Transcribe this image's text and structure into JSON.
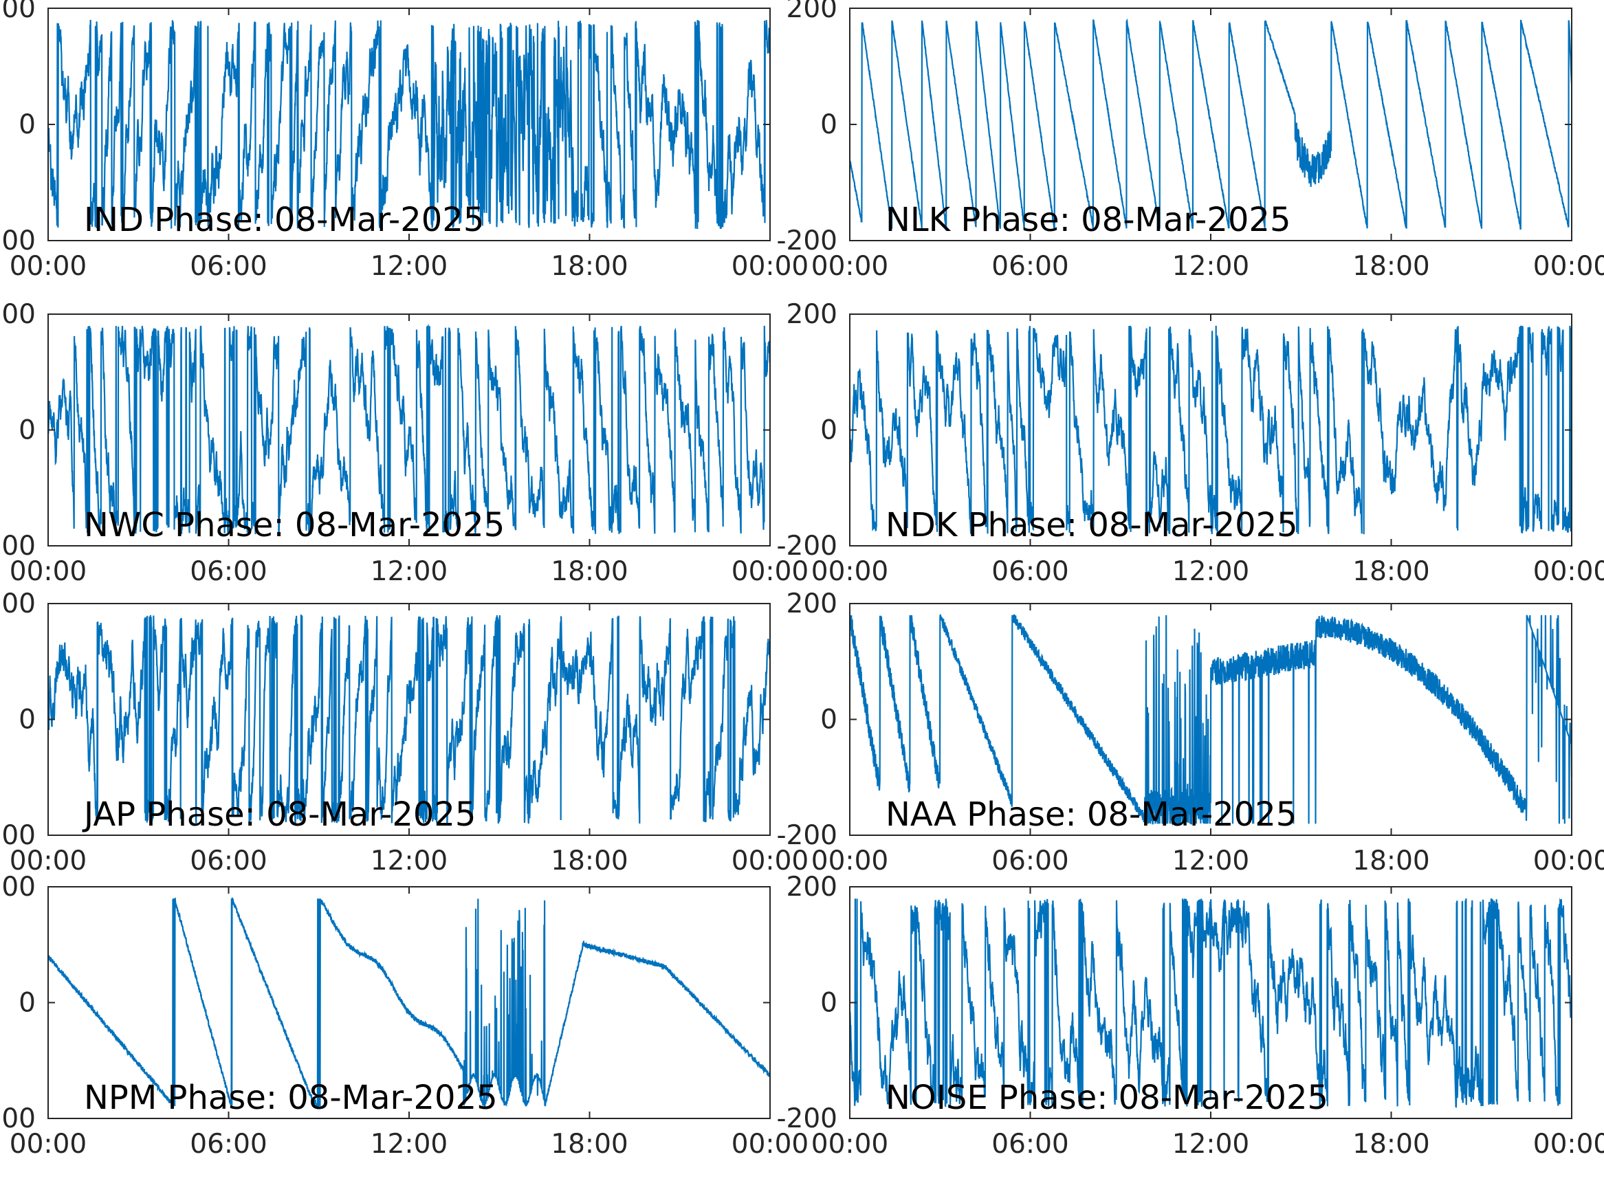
{
  "chart_data": {
    "type": "line",
    "line_color": "#0072BD",
    "axis_color": "#262626",
    "x_tick_labels": [
      "00:00",
      "06:00",
      "12:00",
      "18:00",
      "00:00"
    ],
    "x_range_hours": [
      0,
      24
    ],
    "ylim": [
      -200,
      200
    ],
    "y_tick_labels": [
      "-200",
      "0",
      "200"
    ],
    "grid": false,
    "panels": [
      {
        "label": "IND Phase: 08-Mar-2025",
        "pattern": "dense noisy phase wrapping, densest between 13:00 and 17:00"
      },
      {
        "label": "NLK Phase: 08-Mar-2025",
        "pattern": "regular sawtooth descending ramps, disturbance near 15:00"
      },
      {
        "label": "NWC Phase: 08-Mar-2025",
        "pattern": "dense noisy phase wrapping"
      },
      {
        "label": "NDK Phase: 08-Mar-2025",
        "pattern": "dense noisy phase wrapping"
      },
      {
        "label": "JAP Phase: 08-Mar-2025",
        "pattern": "dense noisy phase wrapping"
      },
      {
        "label": "NAA Phase: 08-Mar-2025",
        "pattern": "slow descending ramps, noisy daytime hump"
      },
      {
        "label": "NPM Phase: 08-Mar-2025",
        "pattern": "slow smooth descending drift with few wraps"
      },
      {
        "label": "NOISE Phase: 08-Mar-2025",
        "pattern": "dense noisy phase wrapping"
      }
    ]
  }
}
